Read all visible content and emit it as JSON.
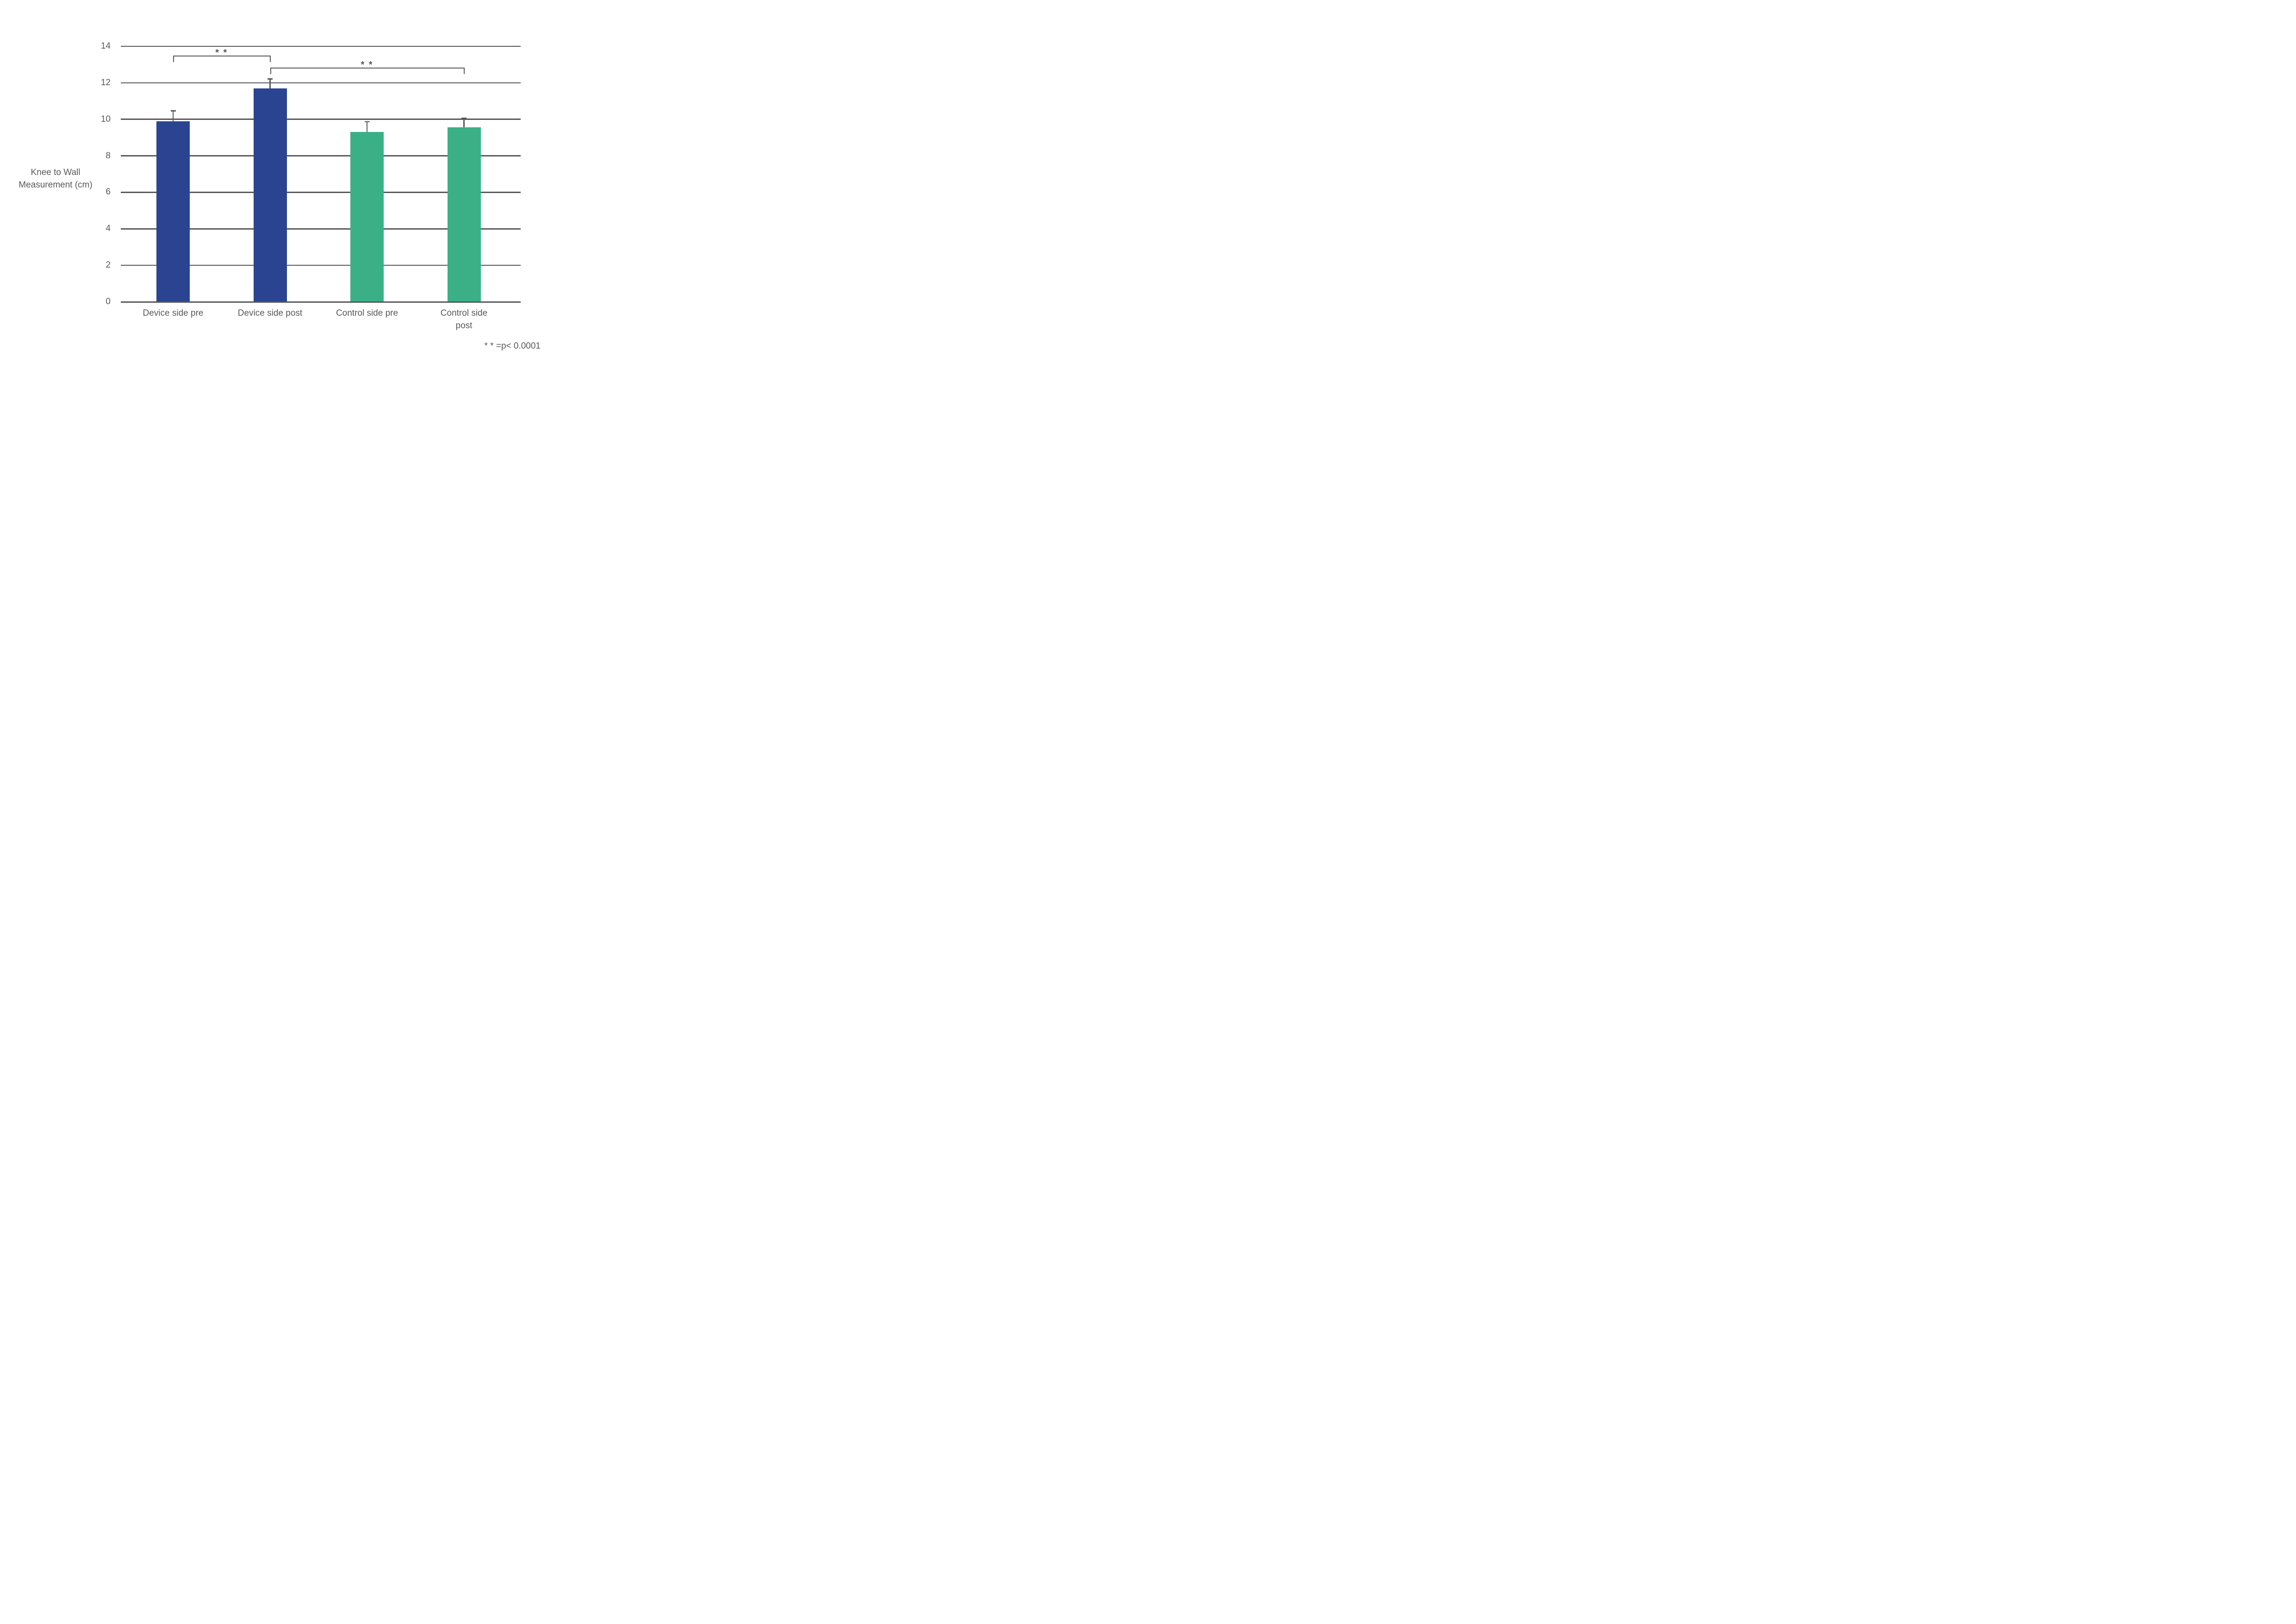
{
  "chart_data": {
    "type": "bar",
    "title": "",
    "ylabel": "Knee to Wall\nMeasurement (cm)",
    "xlabel": "",
    "categories": [
      "Device side pre",
      "Device side post",
      "Control side pre",
      "Control side\npost"
    ],
    "values": [
      9.9,
      11.7,
      9.3,
      9.55
    ],
    "error_plus": [
      0.6,
      0.55,
      0.6,
      0.55
    ],
    "bar_colors": [
      "#2A4491",
      "#2A4491",
      "#3BB087",
      "#3BB087"
    ],
    "ylim": [
      0,
      14
    ],
    "yticks": [
      0,
      2,
      4,
      6,
      8,
      10,
      12,
      14
    ],
    "grid": true,
    "legend": "none",
    "significance": [
      {
        "from": 0,
        "to": 1,
        "label": "* *"
      },
      {
        "from": 1,
        "to": 3,
        "label": "* *"
      }
    ],
    "footnote": "* * =p< 0.0001",
    "line_color": "#58595B",
    "text_color": "#595959"
  }
}
